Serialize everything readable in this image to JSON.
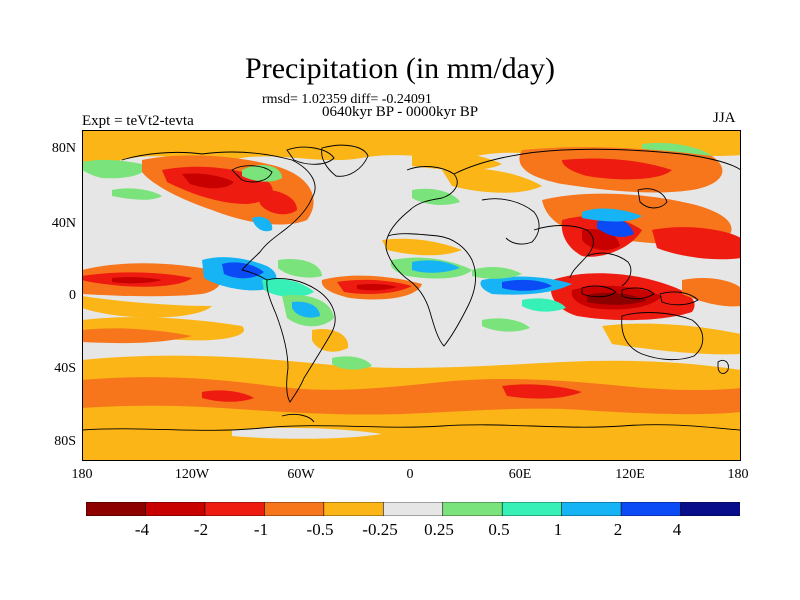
{
  "title": "Precipitation (in mm/day)",
  "stats": "rmsd= 1.02359 diff= -0.24091",
  "period": "0640kyr BP - 0000kyr BP",
  "experiment": "Expt = teVt2-tevta",
  "season": "JJA",
  "y_ticks": [
    "80N",
    "40N",
    "0",
    "40S",
    "80S"
  ],
  "x_ticks": [
    "180",
    "120W",
    "60W",
    "0",
    "60E",
    "120E",
    "180"
  ],
  "colorbar": {
    "colors": [
      "#8c0000",
      "#c80000",
      "#ee1c10",
      "#f7761c",
      "#fbb517",
      "#e6e6e6",
      "#7be37b",
      "#37f0b8",
      "#16b4f5",
      "#0a4bf5",
      "#080e8a"
    ],
    "labels": [
      "-4",
      "-2",
      "-1",
      "-0.5",
      "-0.25",
      "0.25",
      "0.5",
      "1",
      "2",
      "4"
    ]
  },
  "colors": {
    "background": "#e6e6e6",
    "coast": "#000000"
  }
}
